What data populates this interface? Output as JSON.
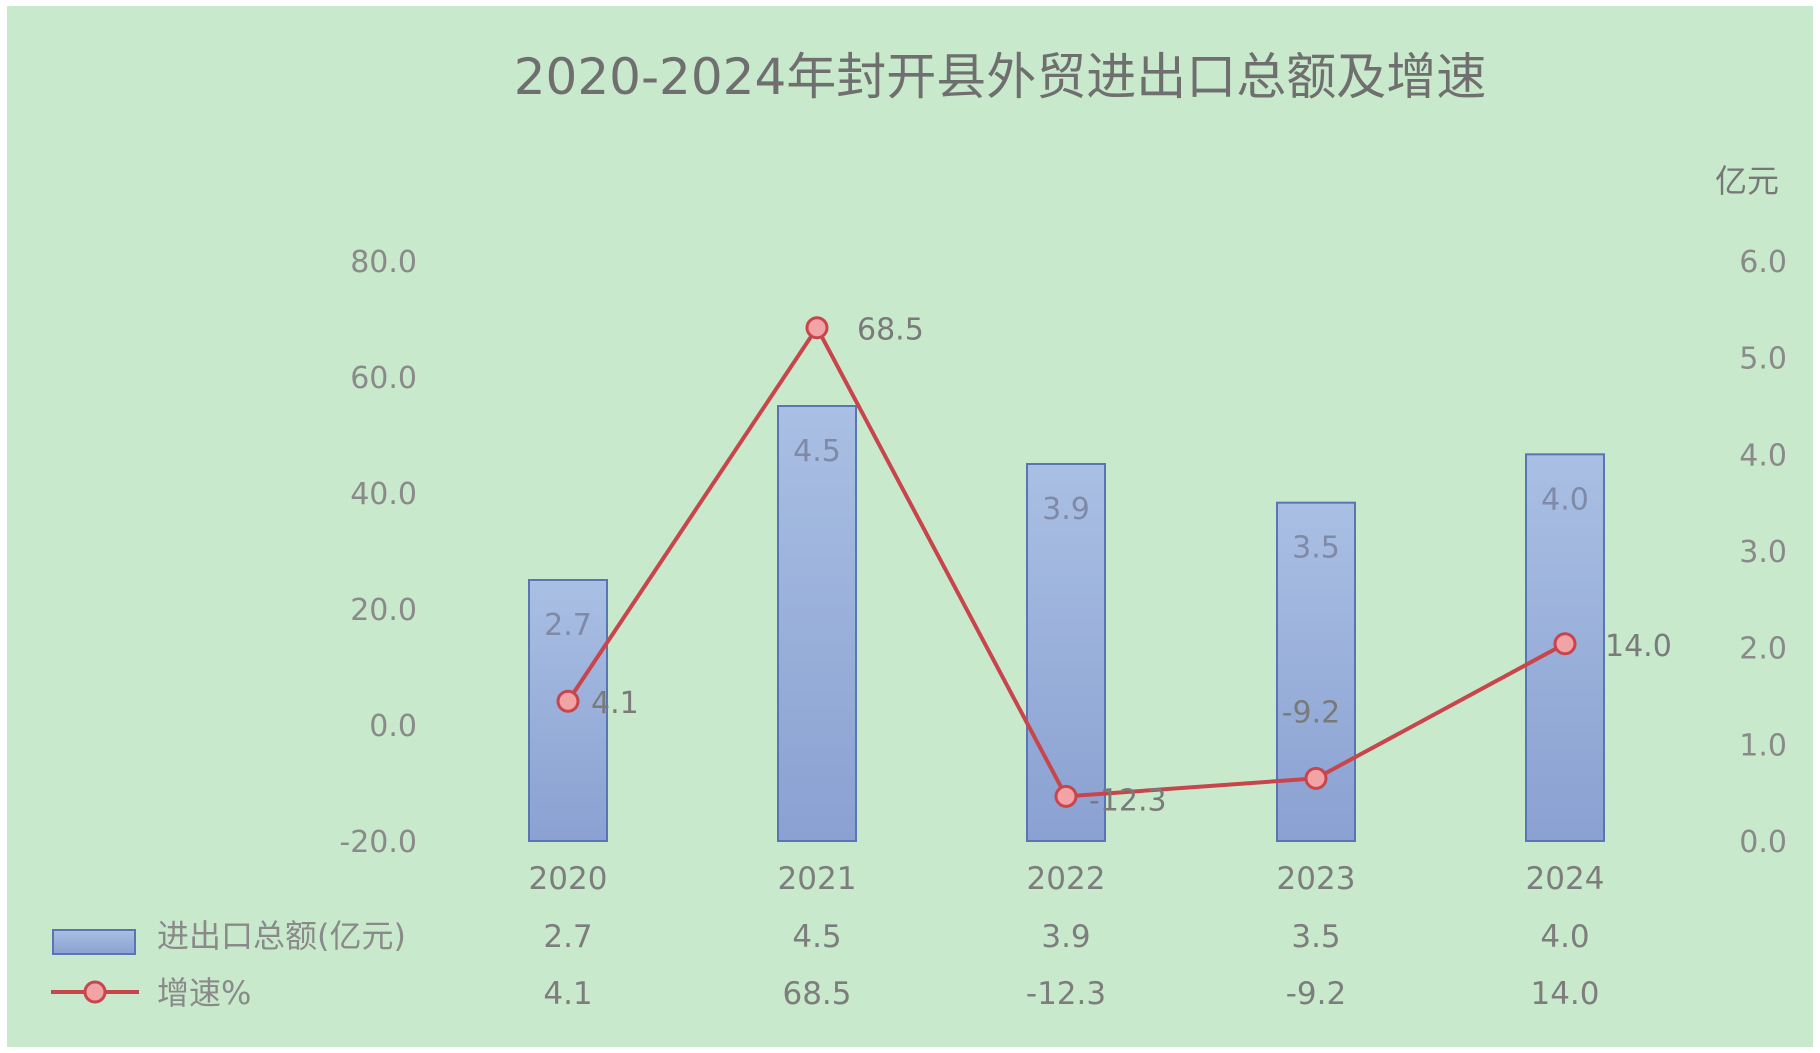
{
  "chart_data": {
    "type": "bar",
    "title": "2020-2024年封开县外贸进出口总额及增速",
    "categories": [
      "2020",
      "2021",
      "2022",
      "2023",
      "2024"
    ],
    "series": [
      {
        "name": "进出口总额(亿元)",
        "kind": "bar",
        "axis": "right",
        "values": [
          2.7,
          4.5,
          3.9,
          3.5,
          4.0
        ],
        "color": "#9db3dc"
      },
      {
        "name": "增速%",
        "kind": "line",
        "axis": "left",
        "values": [
          4.1,
          68.5,
          -12.3,
          -9.2,
          14.0
        ],
        "color": "#c8454b"
      }
    ],
    "left_axis": {
      "ticks": [
        "80.0",
        "60.0",
        "40.0",
        "20.0",
        "0.0",
        "-20.0"
      ],
      "range": [
        -20,
        80
      ]
    },
    "right_axis": {
      "unit": "亿元",
      "ticks": [
        "6.0",
        "5.0",
        "4.0",
        "3.0",
        "2.0",
        "1.0",
        "0.0"
      ],
      "range": [
        0,
        6
      ]
    },
    "bar_labels": [
      "2.7",
      "4.5",
      "3.9",
      "3.5",
      "4.0"
    ],
    "line_labels": [
      "4.1",
      "68.5",
      "-12.3",
      "-9.2",
      "14.0"
    ],
    "data_table": [
      {
        "legend": "进出口总额(亿元)",
        "cells": [
          "2.7",
          "4.5",
          "3.9",
          "3.5",
          "4.0"
        ]
      },
      {
        "legend": "增速%",
        "cells": [
          "4.1",
          "68.5",
          "-12.3",
          "-9.2",
          "14.0"
        ]
      }
    ],
    "grid": false,
    "legend_placement": "bottom-left data table"
  }
}
